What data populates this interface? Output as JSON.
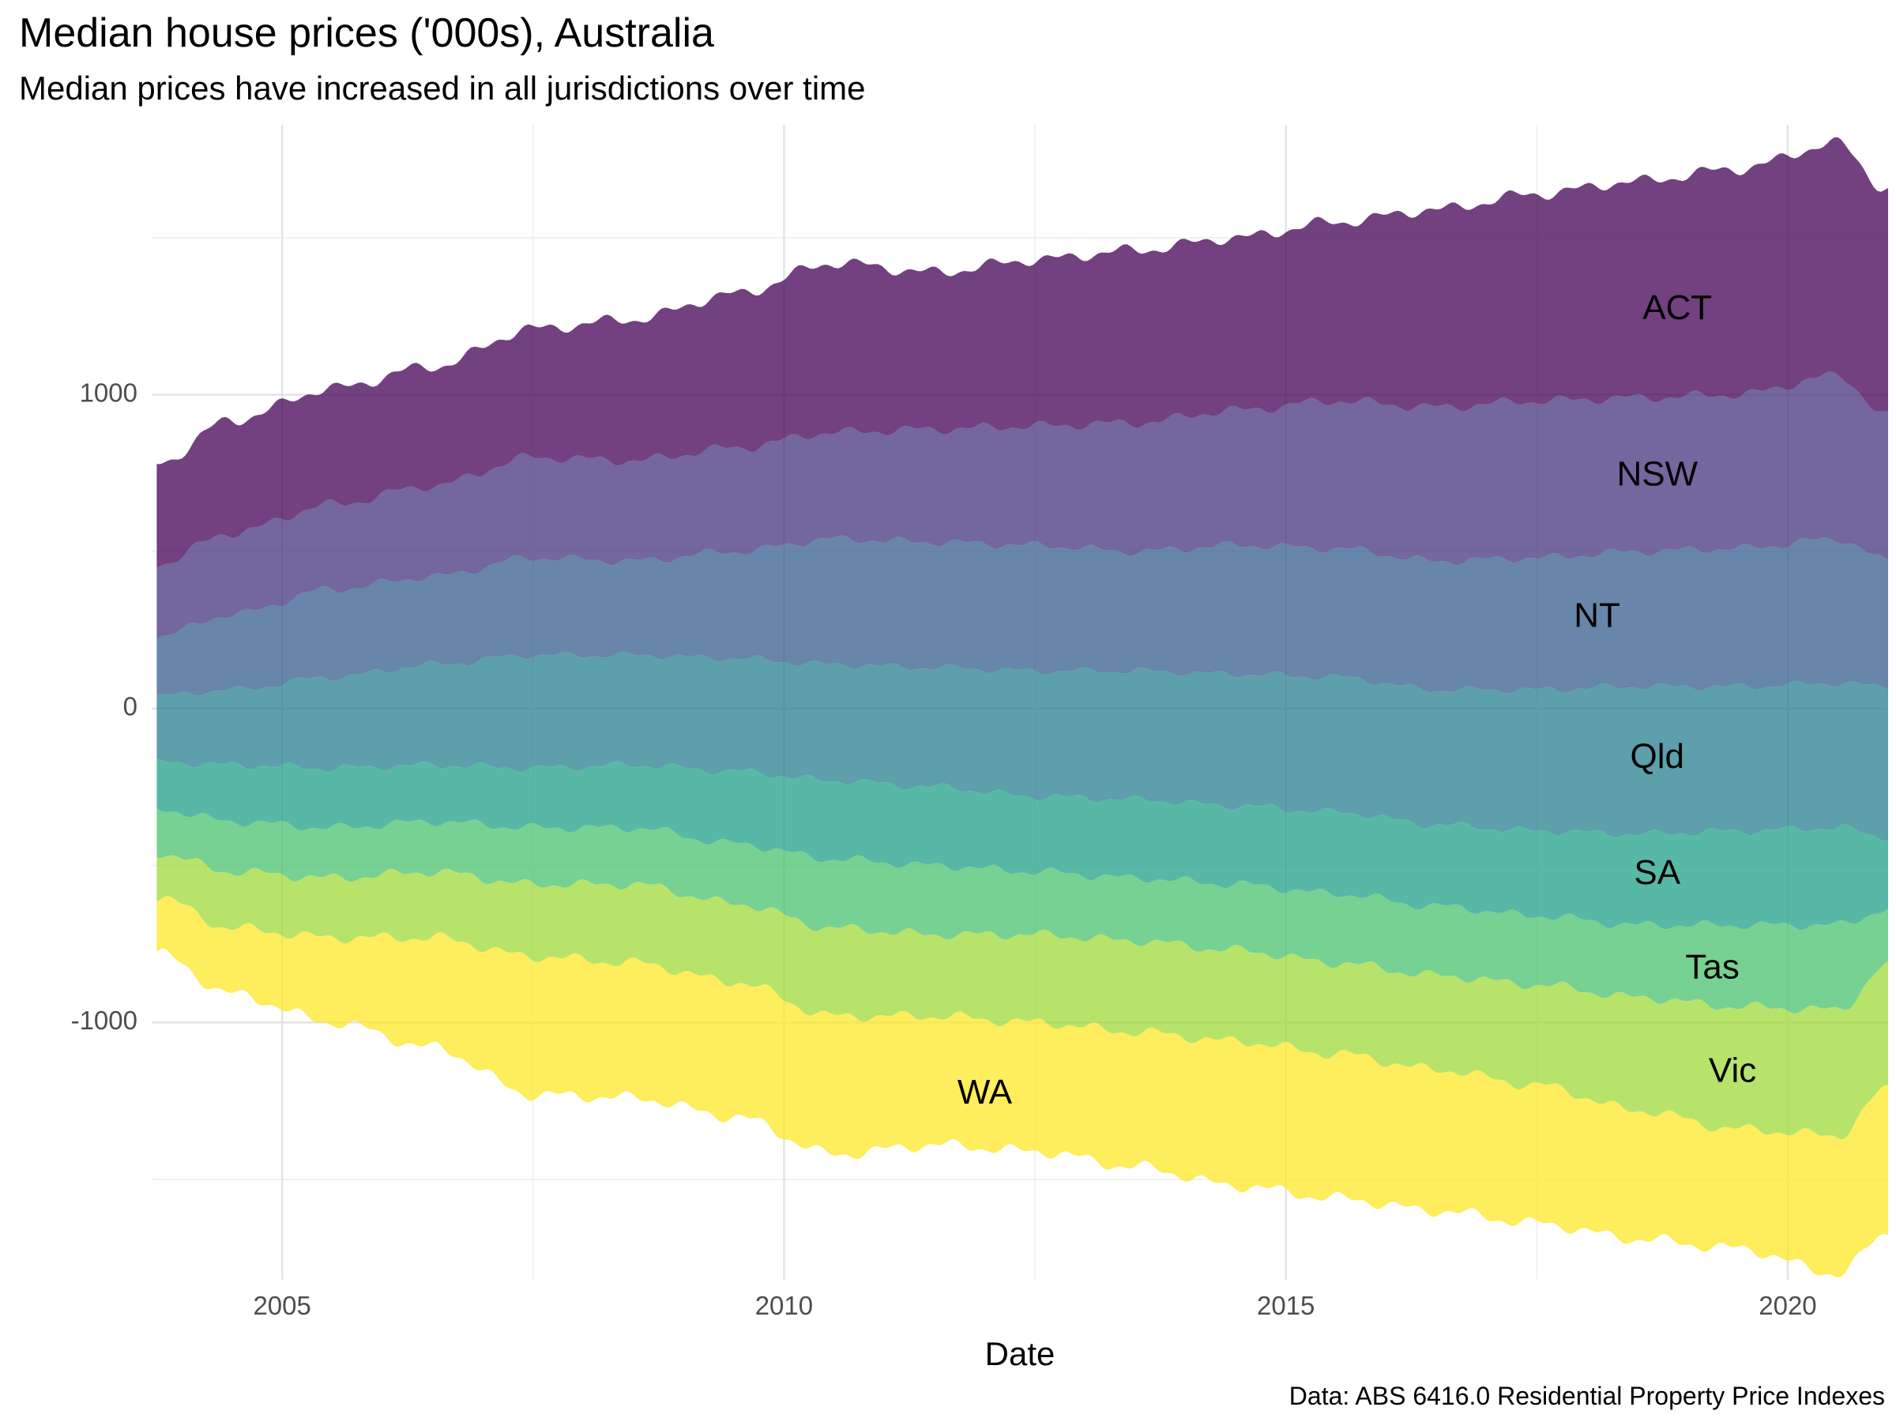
{
  "title": "Median house prices ('000s), Australia",
  "subtitle": "Median prices have increased in all jurisdictions over time",
  "caption": "Data: ABS 6416.0 Residential Property Price Indexes",
  "chart_data": {
    "type": "area",
    "variant": "streamgraph",
    "title": "Median house prices ('000s), Australia",
    "subtitle": "Median prices have increased in all jurisdictions over time",
    "xlabel": "Date",
    "ylabel": "",
    "x_ticks": [
      2005,
      2010,
      2015,
      2020
    ],
    "y_ticks": [
      1000,
      0,
      -1000
    ],
    "xlim": [
      2003.7,
      2021.0
    ],
    "ylim": [
      -1820,
      1860
    ],
    "grid": true,
    "legend": "none (labels placed directly on streams)",
    "x": [
      2003.75,
      2004.5,
      2005.5,
      2006.5,
      2007.5,
      2008.5,
      2009.5,
      2010.5,
      2011.5,
      2012.5,
      2013.5,
      2014.5,
      2015.5,
      2016.5,
      2017.5,
      2018.5,
      2019.5,
      2020.5,
      2021.0
    ],
    "boundaries": [
      [
        780,
        920,
        1020,
        1090,
        1210,
        1240,
        1320,
        1420,
        1390,
        1430,
        1460,
        1500,
        1550,
        1590,
        1640,
        1680,
        1720,
        1800,
        1650
      ],
      [
        460,
        560,
        650,
        710,
        800,
        790,
        830,
        880,
        890,
        900,
        910,
        950,
        980,
        960,
        980,
        990,
        1000,
        1060,
        930
      ],
      [
        230,
        300,
        380,
        420,
        480,
        470,
        500,
        540,
        530,
        520,
        500,
        520,
        510,
        470,
        480,
        500,
        510,
        540,
        470
      ],
      [
        40,
        60,
        100,
        140,
        170,
        170,
        160,
        140,
        130,
        120,
        120,
        110,
        100,
        60,
        60,
        70,
        70,
        80,
        70
      ],
      [
        -170,
        -180,
        -190,
        -180,
        -190,
        -180,
        -200,
        -230,
        -250,
        -280,
        -290,
        -310,
        -330,
        -370,
        -390,
        -400,
        -390,
        -380,
        -410
      ],
      [
        -320,
        -360,
        -380,
        -360,
        -380,
        -380,
        -430,
        -480,
        -500,
        -520,
        -540,
        -560,
        -590,
        -630,
        -660,
        -690,
        -690,
        -690,
        -640
      ],
      [
        -460,
        -520,
        -540,
        -520,
        -560,
        -560,
        -620,
        -700,
        -720,
        -720,
        -740,
        -770,
        -810,
        -850,
        -880,
        -920,
        -950,
        -960,
        -820
      ],
      [
        -600,
        -700,
        -730,
        -730,
        -790,
        -810,
        -870,
        -980,
        -980,
        -1000,
        -1030,
        -1060,
        -1100,
        -1150,
        -1200,
        -1280,
        -1340,
        -1360,
        -1210
      ],
      [
        -780,
        -910,
        -1000,
        -1080,
        -1230,
        -1240,
        -1300,
        -1420,
        -1390,
        -1410,
        -1460,
        -1520,
        -1560,
        -1600,
        -1640,
        -1690,
        -1720,
        -1800,
        -1670
      ]
    ],
    "series": [
      {
        "name": "ACT",
        "color": "#440154",
        "label_at": [
          2018.9,
          1270
        ]
      },
      {
        "name": "NSW",
        "color": "#46337E",
        "label_at": [
          2018.7,
          740
        ]
      },
      {
        "name": "NT",
        "color": "#365C8D",
        "label_at": [
          2018.1,
          290
        ]
      },
      {
        "name": "Qld",
        "color": "#277F8E",
        "label_at": [
          2018.7,
          -160
        ]
      },
      {
        "name": "SA",
        "color": "#1FA187",
        "label_at": [
          2018.7,
          -530
        ]
      },
      {
        "name": "Tas",
        "color": "#4AC16D",
        "label_at": [
          2019.25,
          -830
        ]
      },
      {
        "name": "Vic",
        "color": "#9FDA3A",
        "label_at": [
          2019.45,
          -1160
        ]
      },
      {
        "name": "WA",
        "color": "#FDE725",
        "label_at": [
          2012.0,
          -1230
        ]
      }
    ]
  }
}
